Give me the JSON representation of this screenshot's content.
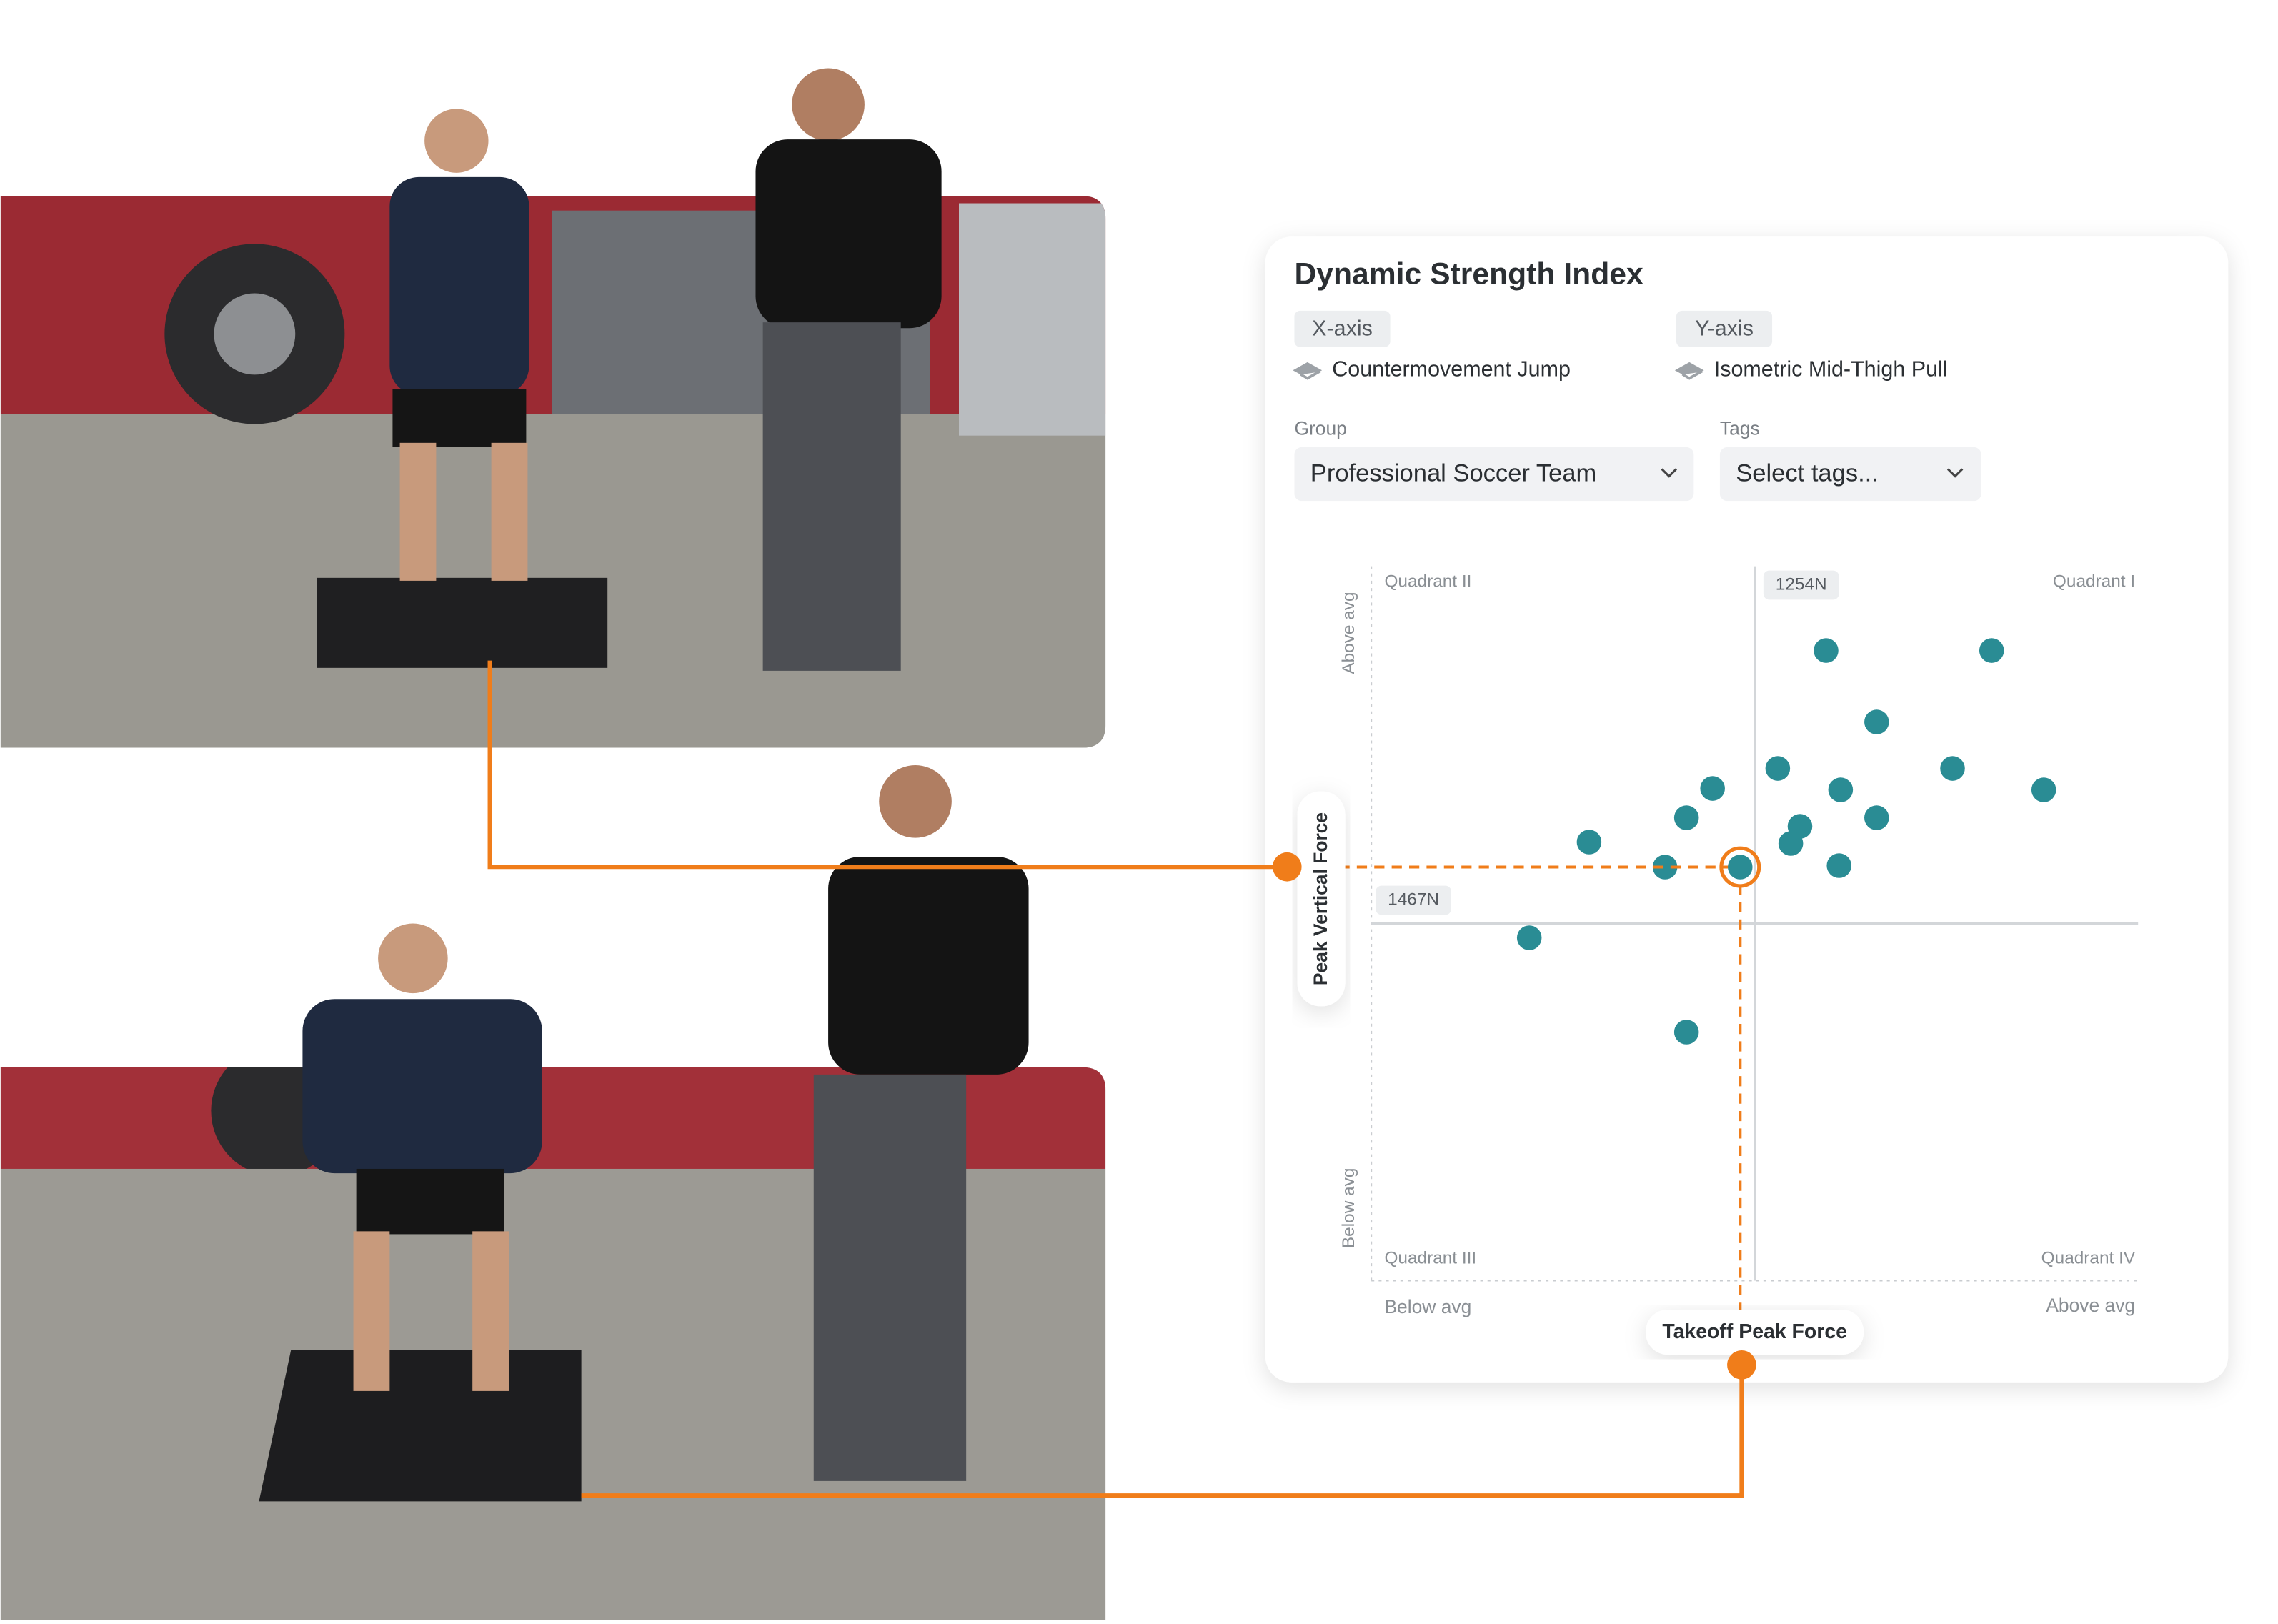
{
  "card": {
    "title": "Dynamic Strength Index",
    "x_axis_chip": "X-axis",
    "x_axis_test": "Countermovement Jump",
    "y_axis_chip": "Y-axis",
    "y_axis_test": "Isometric Mid-Thigh Pull",
    "group_label": "Group",
    "group_value": "Professional Soccer Team",
    "tags_label": "Tags",
    "tags_value": "Select tags..."
  },
  "chart_data": {
    "type": "scatter",
    "xlabel": "Takeoff Peak Force",
    "ylabel": "Peak Vertical Force",
    "quadrants": [
      "Quadrant I",
      "Quadrant II",
      "Quadrant III",
      "Quadrant IV"
    ],
    "x_low": "Below avg",
    "x_high": "Above avg",
    "y_low": "Below avg",
    "y_high": "Above avg",
    "xlim": [
      754,
      1754
    ],
    "ylim": [
      967,
      1967
    ],
    "x_reference": {
      "value": 1254,
      "label": "1254N"
    },
    "y_reference": {
      "value": 1467,
      "label": "1467N"
    },
    "color": "#2a8c94",
    "x": [
      1347,
      1563,
      1413,
      1284,
      1512,
      1631,
      1199,
      1366,
      1165,
      1413,
      1313,
      1301,
      1038,
      1137,
      1364,
      960,
      1165
    ],
    "y": [
      1849,
      1849,
      1749,
      1684,
      1684,
      1654,
      1656,
      1654,
      1615,
      1615,
      1603,
      1579,
      1581,
      1546,
      1548,
      1447,
      1315
    ],
    "selected": {
      "x": 1235,
      "y": 1546,
      "color": "#f07d1a"
    }
  }
}
